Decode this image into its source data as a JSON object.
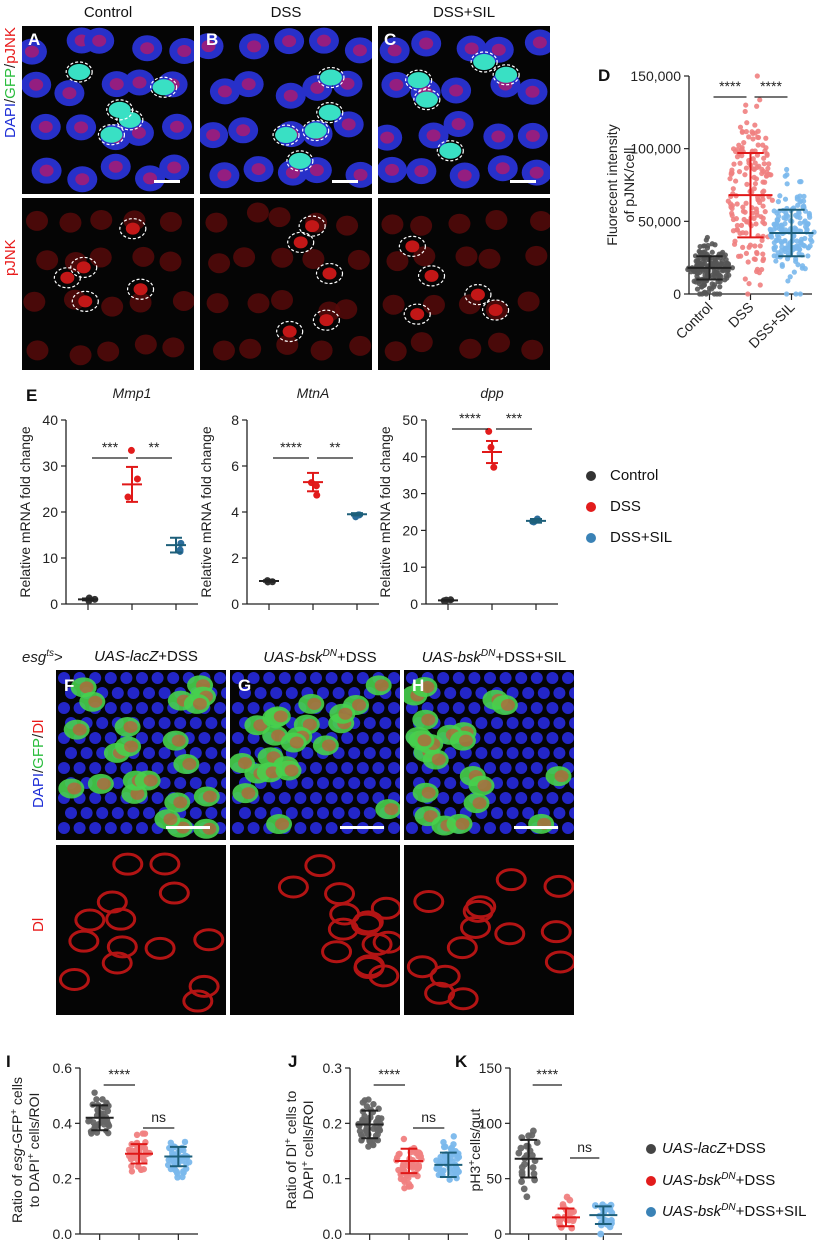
{
  "panels_ac": {
    "column_titles": [
      "Control",
      "DSS",
      "DSS+SIL"
    ],
    "letters": [
      "A",
      "B",
      "C"
    ],
    "row1_label_parts": [
      "DAPI",
      "/",
      "GFP",
      "/",
      "pJNK"
    ],
    "row2_label": "pJNK",
    "colors": {
      "blue": "#1f2fd6",
      "green": "#3ce85a",
      "red": "#e81b1b"
    }
  },
  "panels_fh": {
    "genotype_prefix": "esg",
    "genotype_prefix_sup": "ts",
    "genotype_arrow": ">",
    "titles": [
      {
        "italic": "UAS-lacZ",
        "sup": "",
        "rest": "+DSS"
      },
      {
        "italic": "UAS-bsk",
        "sup": "DN",
        "rest": "+DSS"
      },
      {
        "italic": "UAS-bsk",
        "sup": "DN",
        "rest": "+DSS+SIL"
      }
    ],
    "letters": [
      "F",
      "G",
      "H"
    ],
    "row1_label_parts": [
      "DAPI",
      "/",
      "GFP",
      "/",
      "Dl"
    ],
    "row2_label": "Dl"
  },
  "legend_e": [
    "Control",
    "DSS",
    "DSS+SIL"
  ],
  "legend_ik": [
    {
      "italic": "UAS-lacZ",
      "sup": "",
      "rest": "+DSS"
    },
    {
      "italic": "UAS-bsk",
      "sup": "DN",
      "rest": "+DSS"
    },
    {
      "italic": "UAS-bsk",
      "sup": "DN",
      "rest": "+DSS+SIL"
    }
  ],
  "chart_data": [
    {
      "id": "D",
      "type": "scatter",
      "ylabel": "Fluorecent intensity of pJNK/cell",
      "categories": [
        "Control",
        "DSS",
        "DSS+SIL"
      ],
      "ylim": [
        0,
        150000
      ],
      "yticks": [
        "0",
        "50,000",
        "100,000",
        "150,000"
      ],
      "series": [
        {
          "name": "Control",
          "mean": 18000,
          "sd": 8000,
          "color": "#555555"
        },
        {
          "name": "DSS",
          "mean": 68000,
          "sd": 29000,
          "color": "#f08080"
        },
        {
          "name": "DSS+SIL",
          "mean": 42000,
          "sd": 16000,
          "color": "#7ab8ec"
        }
      ],
      "significance": [
        "****",
        "****"
      ]
    },
    {
      "id": "E1",
      "type": "scatter",
      "title": "Mmp1",
      "ylabel": "Relative mRNA fold change",
      "categories": [
        "Control",
        "DSS",
        "DSS+SIL"
      ],
      "ylim": [
        0,
        40
      ],
      "yticks": [
        "0",
        "10",
        "20",
        "30",
        "40"
      ],
      "series": [
        {
          "name": "Control",
          "mean": 1,
          "sd": 0.2
        },
        {
          "name": "DSS",
          "mean": 26,
          "sd": 3.8
        },
        {
          "name": "DSS+SIL",
          "mean": 12.8,
          "sd": 1.6
        }
      ],
      "significance": [
        "***",
        "**"
      ]
    },
    {
      "id": "E2",
      "type": "scatter",
      "title": "MtnA",
      "ylabel": "Relative mRNA fold change",
      "categories": [
        "Control",
        "DSS",
        "DSS+SIL"
      ],
      "ylim": [
        0,
        8
      ],
      "yticks": [
        "0",
        "2",
        "4",
        "6",
        "8"
      ],
      "series": [
        {
          "name": "Control",
          "mean": 1,
          "sd": 0.03
        },
        {
          "name": "DSS",
          "mean": 5.3,
          "sd": 0.4
        },
        {
          "name": "DSS+SIL",
          "mean": 3.9,
          "sd": 0.05
        }
      ],
      "significance": [
        "****",
        "**"
      ]
    },
    {
      "id": "E3",
      "type": "scatter",
      "title": "dpp",
      "ylabel": "Relative mRNA fold change",
      "categories": [
        "Control",
        "DSS",
        "DSS+SIL"
      ],
      "ylim": [
        0,
        50
      ],
      "yticks": [
        "0",
        "10",
        "20",
        "30",
        "40",
        "50"
      ],
      "series": [
        {
          "name": "Control",
          "mean": 1,
          "sd": 0.1
        },
        {
          "name": "DSS",
          "mean": 41.3,
          "sd": 3
        },
        {
          "name": "DSS+SIL",
          "mean": 22.6,
          "sd": 0.5
        }
      ],
      "significance": [
        "****",
        "***"
      ]
    },
    {
      "id": "I",
      "type": "scatter",
      "ylabel": "Ratio of esg-GFP+ cells to DAPI+ cells/ROI",
      "ylim": [
        0,
        0.6
      ],
      "yticks": [
        "0.0",
        "0.2",
        "0.4",
        "0.6"
      ],
      "series": [
        {
          "name": "UAS-lacZ+DSS",
          "mean": 0.42,
          "sd": 0.045
        },
        {
          "name": "UAS-bskDN+DSS",
          "mean": 0.29,
          "sd": 0.035
        },
        {
          "name": "UAS-bskDN+DSS+SIL",
          "mean": 0.28,
          "sd": 0.035
        }
      ],
      "significance": [
        "****",
        "ns"
      ]
    },
    {
      "id": "J",
      "type": "scatter",
      "ylabel": "Ratio of Dl+ cells to DAPI+ cells/ROI",
      "ylim": [
        0,
        0.3
      ],
      "yticks": [
        "0.0",
        "0.1",
        "0.2",
        "0.3"
      ],
      "series": [
        {
          "name": "UAS-lacZ+DSS",
          "mean": 0.198,
          "sd": 0.025
        },
        {
          "name": "UAS-bskDN+DSS",
          "mean": 0.132,
          "sd": 0.022
        },
        {
          "name": "UAS-bskDN+DSS+SIL",
          "mean": 0.125,
          "sd": 0.022
        }
      ],
      "significance": [
        "****",
        "ns"
      ]
    },
    {
      "id": "K",
      "type": "scatter",
      "ylabel": "pH3+cells/gut",
      "ylim": [
        0,
        150
      ],
      "yticks": [
        "0",
        "50",
        "100",
        "150"
      ],
      "series": [
        {
          "name": "UAS-lacZ+DSS",
          "mean": 68,
          "sd": 17
        },
        {
          "name": "UAS-bskDN+DSS",
          "mean": 15,
          "sd": 8
        },
        {
          "name": "UAS-bskDN+DSS+SIL",
          "mean": 17,
          "sd": 8
        }
      ],
      "significance": [
        "****",
        "ns"
      ]
    }
  ]
}
